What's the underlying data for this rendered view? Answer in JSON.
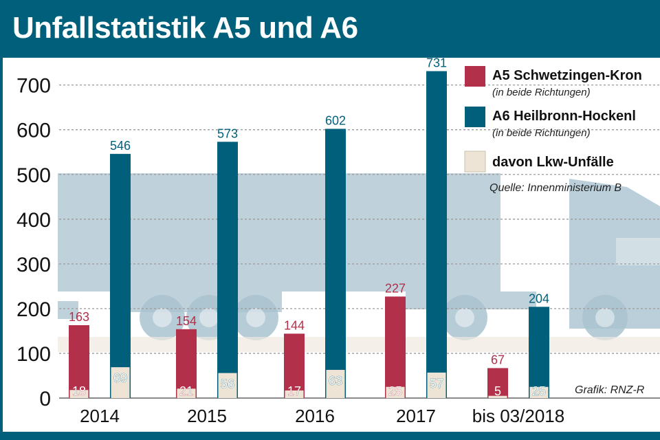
{
  "title": "Unfallstatistik A5 und A6",
  "colors": {
    "header": "#005f7a",
    "a5": "#b2304a",
    "a6": "#005f7a",
    "lkw": "#ede4d6",
    "truck": "#a9c3cf",
    "grid": "#9a9a9a"
  },
  "chart_data": {
    "type": "bar",
    "categories": [
      "2014",
      "2015",
      "2016",
      "2017",
      "bis 03/2018"
    ],
    "ylim": [
      0,
      750
    ],
    "yticks": [
      0,
      100,
      200,
      300,
      400,
      500,
      600,
      700
    ],
    "grid": true,
    "legend_position": "top-right",
    "series": [
      {
        "name": "A5 Schwetzingen-Kron",
        "values": [
          163,
          154,
          144,
          227,
          67
        ],
        "color": "#b2304a"
      },
      {
        "name": "A6 Heilbronn-Hockenl",
        "values": [
          546,
          573,
          602,
          731,
          204
        ],
        "color": "#005f7a"
      }
    ],
    "lkw": {
      "name": "davon Lkw-Unfälle",
      "a5": [
        18,
        21,
        17,
        25,
        5
      ],
      "a6": [
        69,
        56,
        63,
        57,
        25
      ],
      "color": "#ede4d6"
    }
  },
  "legend": {
    "items": [
      {
        "label": "A5 Schwetzingen-Kron",
        "sub": "(in beide Richtungen)"
      },
      {
        "label": "A6 Heilbronn-Hockenl",
        "sub": "(in beide Richtungen)"
      },
      {
        "label": "davon Lkw-Unfälle",
        "sub": ""
      }
    ],
    "source": "Quelle: Innenministerium B"
  },
  "credit": "Grafik: RNZ-R"
}
